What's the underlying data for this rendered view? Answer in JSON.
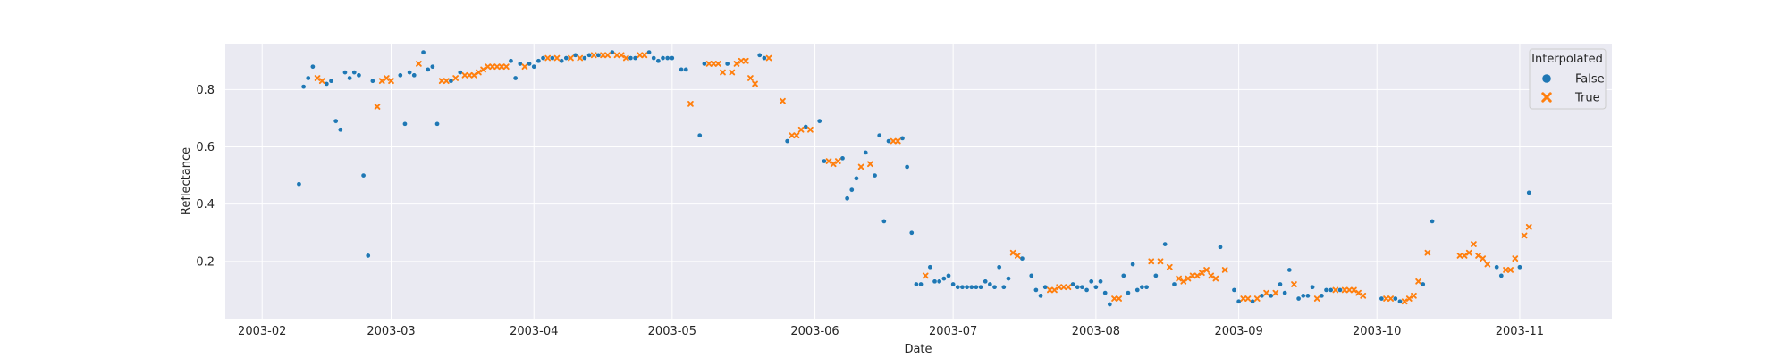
{
  "chart_data": {
    "type": "scatter",
    "xlabel": "Date",
    "ylabel": "Reflectance",
    "xlim": [
      "2003-01-24",
      "2003-11-21"
    ],
    "ylim": [
      0.0,
      0.96
    ],
    "x_ticks": [
      "2003-02",
      "2003-03",
      "2003-04",
      "2003-05",
      "2003-06",
      "2003-07",
      "2003-08",
      "2003-09",
      "2003-10",
      "2003-11"
    ],
    "y_ticks": [
      0.2,
      0.4,
      0.6,
      0.8
    ],
    "y_tick_labels": [
      "0.2",
      "0.4",
      "0.6",
      "0.8"
    ],
    "grid": true,
    "background": "#eaeaf2",
    "legend": {
      "title": "Interpolated",
      "position": "top-right"
    },
    "series": [
      {
        "name": "False",
        "marker": "circle",
        "color": "#1f77b4",
        "points": [
          [
            "2003-02-09",
            0.47
          ],
          [
            "2003-02-10",
            0.81
          ],
          [
            "2003-02-11",
            0.84
          ],
          [
            "2003-02-12",
            0.88
          ],
          [
            "2003-02-15",
            0.82
          ],
          [
            "2003-02-16",
            0.83
          ],
          [
            "2003-02-17",
            0.69
          ],
          [
            "2003-02-18",
            0.66
          ],
          [
            "2003-02-19",
            0.86
          ],
          [
            "2003-02-20",
            0.84
          ],
          [
            "2003-02-21",
            0.86
          ],
          [
            "2003-02-22",
            0.85
          ],
          [
            "2003-02-23",
            0.5
          ],
          [
            "2003-02-24",
            0.22
          ],
          [
            "2003-02-25",
            0.83
          ],
          [
            "2003-03-03",
            0.85
          ],
          [
            "2003-03-04",
            0.68
          ],
          [
            "2003-03-05",
            0.86
          ],
          [
            "2003-03-06",
            0.85
          ],
          [
            "2003-03-08",
            0.93
          ],
          [
            "2003-03-09",
            0.87
          ],
          [
            "2003-03-10",
            0.88
          ],
          [
            "2003-03-11",
            0.68
          ],
          [
            "2003-03-14",
            0.83
          ],
          [
            "2003-03-16",
            0.86
          ],
          [
            "2003-03-27",
            0.9
          ],
          [
            "2003-03-28",
            0.84
          ],
          [
            "2003-03-29",
            0.89
          ],
          [
            "2003-03-31",
            0.89
          ],
          [
            "2003-04-01",
            0.88
          ],
          [
            "2003-04-02",
            0.9
          ],
          [
            "2003-04-03",
            0.91
          ],
          [
            "2003-04-05",
            0.91
          ],
          [
            "2003-04-07",
            0.9
          ],
          [
            "2003-04-08",
            0.91
          ],
          [
            "2003-04-10",
            0.92
          ],
          [
            "2003-04-12",
            0.91
          ],
          [
            "2003-04-13",
            0.92
          ],
          [
            "2003-04-15",
            0.92
          ],
          [
            "2003-04-18",
            0.93
          ],
          [
            "2003-04-22",
            0.91
          ],
          [
            "2003-04-23",
            0.91
          ],
          [
            "2003-04-26",
            0.93
          ],
          [
            "2003-04-27",
            0.91
          ],
          [
            "2003-04-28",
            0.9
          ],
          [
            "2003-04-29",
            0.91
          ],
          [
            "2003-04-30",
            0.91
          ],
          [
            "2003-05-01",
            0.91
          ],
          [
            "2003-05-03",
            0.87
          ],
          [
            "2003-05-04",
            0.87
          ],
          [
            "2003-05-07",
            0.64
          ],
          [
            "2003-05-08",
            0.89
          ],
          [
            "2003-05-13",
            0.89
          ],
          [
            "2003-05-20",
            0.92
          ],
          [
            "2003-05-21",
            0.91
          ],
          [
            "2003-05-26",
            0.62
          ],
          [
            "2003-05-30",
            0.67
          ],
          [
            "2003-06-02",
            0.69
          ],
          [
            "2003-06-03",
            0.55
          ],
          [
            "2003-06-07",
            0.56
          ],
          [
            "2003-06-08",
            0.42
          ],
          [
            "2003-06-09",
            0.45
          ],
          [
            "2003-06-10",
            0.49
          ],
          [
            "2003-06-12",
            0.58
          ],
          [
            "2003-06-14",
            0.5
          ],
          [
            "2003-06-15",
            0.64
          ],
          [
            "2003-06-16",
            0.34
          ],
          [
            "2003-06-17",
            0.62
          ],
          [
            "2003-06-20",
            0.63
          ],
          [
            "2003-06-21",
            0.53
          ],
          [
            "2003-06-22",
            0.3
          ],
          [
            "2003-06-23",
            0.12
          ],
          [
            "2003-06-24",
            0.12
          ],
          [
            "2003-06-26",
            0.18
          ],
          [
            "2003-06-27",
            0.13
          ],
          [
            "2003-06-28",
            0.13
          ],
          [
            "2003-06-29",
            0.14
          ],
          [
            "2003-06-30",
            0.15
          ],
          [
            "2003-07-01",
            0.12
          ],
          [
            "2003-07-02",
            0.11
          ],
          [
            "2003-07-03",
            0.11
          ],
          [
            "2003-07-04",
            0.11
          ],
          [
            "2003-07-05",
            0.11
          ],
          [
            "2003-07-06",
            0.11
          ],
          [
            "2003-07-07",
            0.11
          ],
          [
            "2003-07-08",
            0.13
          ],
          [
            "2003-07-09",
            0.12
          ],
          [
            "2003-07-10",
            0.11
          ],
          [
            "2003-07-11",
            0.18
          ],
          [
            "2003-07-12",
            0.11
          ],
          [
            "2003-07-13",
            0.14
          ],
          [
            "2003-07-16",
            0.21
          ],
          [
            "2003-07-18",
            0.15
          ],
          [
            "2003-07-19",
            0.1
          ],
          [
            "2003-07-20",
            0.08
          ],
          [
            "2003-07-21",
            0.11
          ],
          [
            "2003-07-27",
            0.12
          ],
          [
            "2003-07-28",
            0.11
          ],
          [
            "2003-07-29",
            0.11
          ],
          [
            "2003-07-30",
            0.1
          ],
          [
            "2003-07-31",
            0.13
          ],
          [
            "2003-08-01",
            0.11
          ],
          [
            "2003-08-02",
            0.13
          ],
          [
            "2003-08-03",
            0.09
          ],
          [
            "2003-08-04",
            0.05
          ],
          [
            "2003-08-07",
            0.15
          ],
          [
            "2003-08-08",
            0.09
          ],
          [
            "2003-08-09",
            0.19
          ],
          [
            "2003-08-10",
            0.1
          ],
          [
            "2003-08-11",
            0.11
          ],
          [
            "2003-08-12",
            0.11
          ],
          [
            "2003-08-14",
            0.15
          ],
          [
            "2003-08-16",
            0.26
          ],
          [
            "2003-08-18",
            0.12
          ],
          [
            "2003-08-28",
            0.25
          ],
          [
            "2003-08-31",
            0.1
          ],
          [
            "2003-09-01",
            0.06
          ],
          [
            "2003-09-04",
            0.06
          ],
          [
            "2003-09-06",
            0.08
          ],
          [
            "2003-09-08",
            0.08
          ],
          [
            "2003-09-10",
            0.12
          ],
          [
            "2003-09-11",
            0.09
          ],
          [
            "2003-09-12",
            0.17
          ],
          [
            "2003-09-14",
            0.07
          ],
          [
            "2003-09-15",
            0.08
          ],
          [
            "2003-09-16",
            0.08
          ],
          [
            "2003-09-17",
            0.11
          ],
          [
            "2003-09-19",
            0.08
          ],
          [
            "2003-09-20",
            0.1
          ],
          [
            "2003-09-21",
            0.1
          ],
          [
            "2003-09-23",
            0.1
          ],
          [
            "2003-10-02",
            0.07
          ],
          [
            "2003-10-05",
            0.07
          ],
          [
            "2003-10-06",
            0.06
          ],
          [
            "2003-10-11",
            0.12
          ],
          [
            "2003-10-13",
            0.34
          ],
          [
            "2003-10-27",
            0.18
          ],
          [
            "2003-10-28",
            0.15
          ],
          [
            "2003-11-01",
            0.18
          ],
          [
            "2003-11-03",
            0.44
          ]
        ]
      },
      {
        "name": "True",
        "marker": "x",
        "color": "#ff7f0e",
        "points": [
          [
            "2003-02-13",
            0.84
          ],
          [
            "2003-02-14",
            0.83
          ],
          [
            "2003-02-26",
            0.74
          ],
          [
            "2003-02-27",
            0.83
          ],
          [
            "2003-02-28",
            0.84
          ],
          [
            "2003-03-01",
            0.83
          ],
          [
            "2003-03-07",
            0.89
          ],
          [
            "2003-03-12",
            0.83
          ],
          [
            "2003-03-13",
            0.83
          ],
          [
            "2003-03-15",
            0.84
          ],
          [
            "2003-03-17",
            0.85
          ],
          [
            "2003-03-18",
            0.85
          ],
          [
            "2003-03-19",
            0.85
          ],
          [
            "2003-03-20",
            0.86
          ],
          [
            "2003-03-21",
            0.87
          ],
          [
            "2003-03-22",
            0.88
          ],
          [
            "2003-03-23",
            0.88
          ],
          [
            "2003-03-24",
            0.88
          ],
          [
            "2003-03-25",
            0.88
          ],
          [
            "2003-03-26",
            0.88
          ],
          [
            "2003-03-30",
            0.88
          ],
          [
            "2003-04-04",
            0.91
          ],
          [
            "2003-04-06",
            0.91
          ],
          [
            "2003-04-09",
            0.91
          ],
          [
            "2003-04-11",
            0.91
          ],
          [
            "2003-04-14",
            0.92
          ],
          [
            "2003-04-16",
            0.92
          ],
          [
            "2003-04-17",
            0.92
          ],
          [
            "2003-04-19",
            0.92
          ],
          [
            "2003-04-20",
            0.92
          ],
          [
            "2003-04-21",
            0.91
          ],
          [
            "2003-04-24",
            0.92
          ],
          [
            "2003-04-25",
            0.92
          ],
          [
            "2003-05-05",
            0.75
          ],
          [
            "2003-05-09",
            0.89
          ],
          [
            "2003-05-10",
            0.89
          ],
          [
            "2003-05-11",
            0.89
          ],
          [
            "2003-05-12",
            0.86
          ],
          [
            "2003-05-14",
            0.86
          ],
          [
            "2003-05-15",
            0.89
          ],
          [
            "2003-05-16",
            0.9
          ],
          [
            "2003-05-17",
            0.9
          ],
          [
            "2003-05-18",
            0.84
          ],
          [
            "2003-05-19",
            0.82
          ],
          [
            "2003-05-22",
            0.91
          ],
          [
            "2003-05-25",
            0.76
          ],
          [
            "2003-05-27",
            0.64
          ],
          [
            "2003-05-28",
            0.64
          ],
          [
            "2003-05-29",
            0.66
          ],
          [
            "2003-05-31",
            0.66
          ],
          [
            "2003-06-04",
            0.55
          ],
          [
            "2003-06-05",
            0.54
          ],
          [
            "2003-06-06",
            0.55
          ],
          [
            "2003-06-11",
            0.53
          ],
          [
            "2003-06-13",
            0.54
          ],
          [
            "2003-06-18",
            0.62
          ],
          [
            "2003-06-19",
            0.62
          ],
          [
            "2003-06-25",
            0.15
          ],
          [
            "2003-07-14",
            0.23
          ],
          [
            "2003-07-15",
            0.22
          ],
          [
            "2003-07-22",
            0.1
          ],
          [
            "2003-07-23",
            0.1
          ],
          [
            "2003-07-24",
            0.11
          ],
          [
            "2003-07-25",
            0.11
          ],
          [
            "2003-07-26",
            0.11
          ],
          [
            "2003-08-05",
            0.07
          ],
          [
            "2003-08-06",
            0.07
          ],
          [
            "2003-08-13",
            0.2
          ],
          [
            "2003-08-15",
            0.2
          ],
          [
            "2003-08-17",
            0.18
          ],
          [
            "2003-08-19",
            0.14
          ],
          [
            "2003-08-20",
            0.13
          ],
          [
            "2003-08-21",
            0.14
          ],
          [
            "2003-08-22",
            0.15
          ],
          [
            "2003-08-23",
            0.15
          ],
          [
            "2003-08-24",
            0.16
          ],
          [
            "2003-08-25",
            0.17
          ],
          [
            "2003-08-26",
            0.15
          ],
          [
            "2003-08-27",
            0.14
          ],
          [
            "2003-08-29",
            0.17
          ],
          [
            "2003-09-02",
            0.07
          ],
          [
            "2003-09-03",
            0.07
          ],
          [
            "2003-09-05",
            0.07
          ],
          [
            "2003-09-07",
            0.09
          ],
          [
            "2003-09-09",
            0.09
          ],
          [
            "2003-09-13",
            0.12
          ],
          [
            "2003-09-18",
            0.07
          ],
          [
            "2003-09-22",
            0.1
          ],
          [
            "2003-09-24",
            0.1
          ],
          [
            "2003-09-25",
            0.1
          ],
          [
            "2003-09-26",
            0.1
          ],
          [
            "2003-09-27",
            0.09
          ],
          [
            "2003-09-28",
            0.08
          ],
          [
            "2003-10-03",
            0.07
          ],
          [
            "2003-10-04",
            0.07
          ],
          [
            "2003-10-07",
            0.06
          ],
          [
            "2003-10-08",
            0.07
          ],
          [
            "2003-10-09",
            0.08
          ],
          [
            "2003-10-10",
            0.13
          ],
          [
            "2003-10-12",
            0.23
          ],
          [
            "2003-10-19",
            0.22
          ],
          [
            "2003-10-20",
            0.22
          ],
          [
            "2003-10-21",
            0.23
          ],
          [
            "2003-10-22",
            0.26
          ],
          [
            "2003-10-23",
            0.22
          ],
          [
            "2003-10-24",
            0.21
          ],
          [
            "2003-10-25",
            0.19
          ],
          [
            "2003-10-29",
            0.17
          ],
          [
            "2003-10-30",
            0.17
          ],
          [
            "2003-10-31",
            0.21
          ],
          [
            "2003-11-02",
            0.29
          ],
          [
            "2003-11-03",
            0.32
          ]
        ]
      }
    ]
  }
}
